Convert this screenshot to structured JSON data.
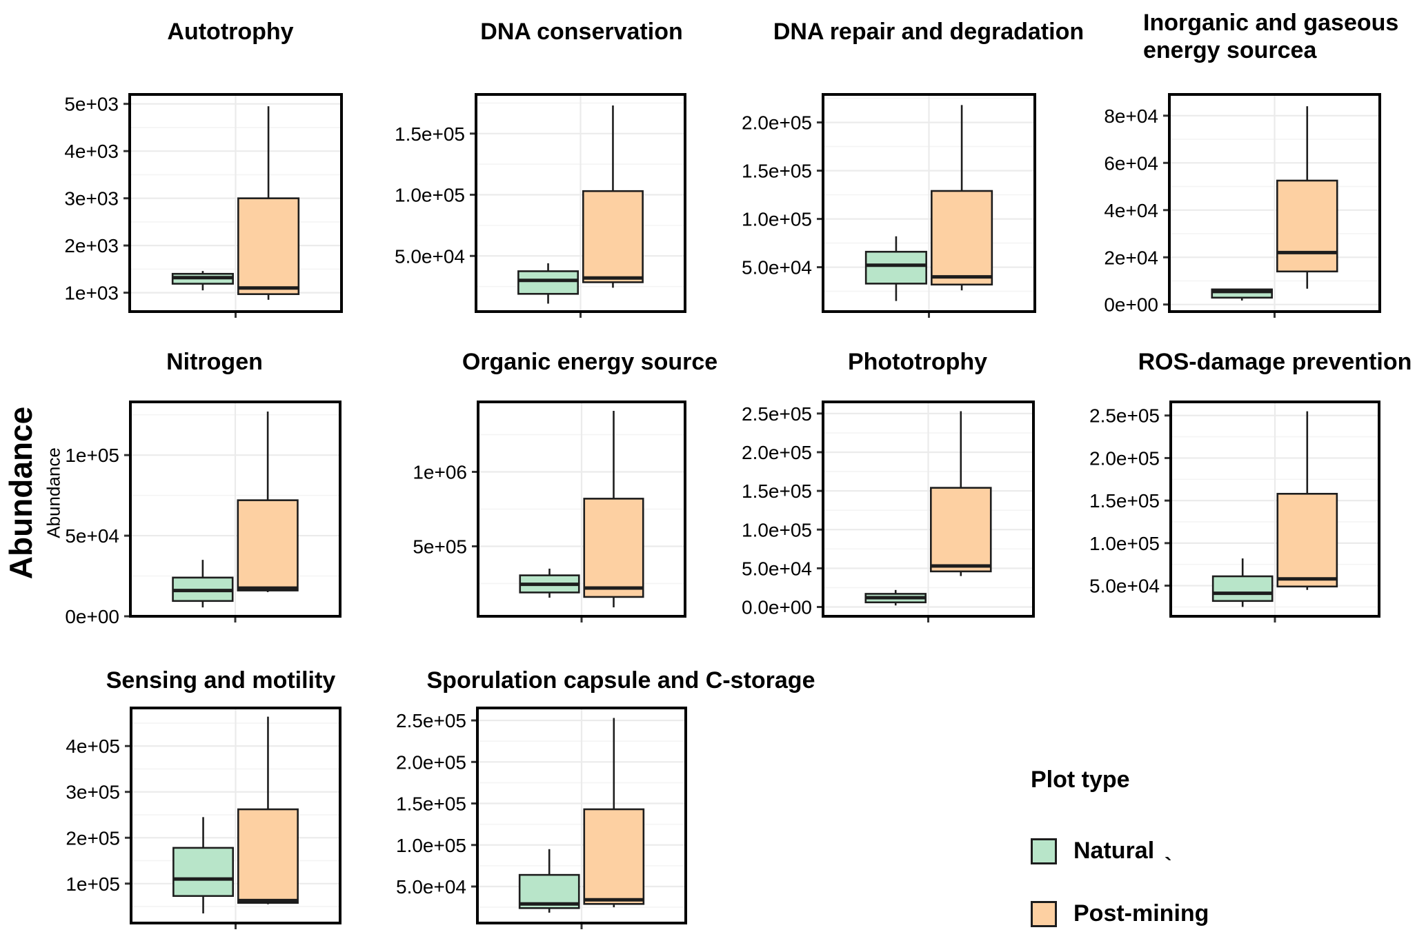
{
  "figure": {
    "outer_ylabel": "Abundance",
    "inner_ylabel": "Abundance"
  },
  "legend": {
    "title": "Plot type",
    "items": [
      {
        "label": "Natural",
        "color": "#b8e5c9"
      },
      {
        "label": "Post-mining",
        "color": "#fdd0a2"
      }
    ],
    "artifact": "`"
  },
  "colors": {
    "natural_fill": "#b8e5c9",
    "postmining_fill": "#fdd0a2",
    "box_stroke": "#1d1d1d",
    "grid_major": "#ebebeb",
    "grid_minor": "#f4f4f4",
    "panel_border": "#000000",
    "panel_bg": "#ffffff"
  },
  "chart_data": [
    {
      "type": "box",
      "title": "Autotrophy",
      "ylim": [
        600,
        5200
      ],
      "yticks": [
        {
          "v": 1000,
          "label": "1e+03"
        },
        {
          "v": 2000,
          "label": "2e+03"
        },
        {
          "v": 3000,
          "label": "3e+03"
        },
        {
          "v": 4000,
          "label": "4e+03"
        },
        {
          "v": 5000,
          "label": "5e+03"
        }
      ],
      "series": [
        {
          "name": "Natural",
          "min": 1050,
          "q1": 1190,
          "median": 1320,
          "q3": 1400,
          "max": 1460
        },
        {
          "name": "Post-mining",
          "min": 850,
          "q1": 970,
          "median": 1100,
          "q3": 3000,
          "max": 4950
        }
      ]
    },
    {
      "type": "box",
      "title": "DNA conservation",
      "ylim": [
        4500,
        182000
      ],
      "yticks": [
        {
          "v": 50000,
          "label": "5.0e+04"
        },
        {
          "v": 100000,
          "label": "1.0e+05"
        },
        {
          "v": 150000,
          "label": "1.5e+05"
        }
      ],
      "series": [
        {
          "name": "Natural",
          "min": 11000,
          "q1": 19000,
          "median": 30000,
          "q3": 37500,
          "max": 44000
        },
        {
          "name": "Post-mining",
          "min": 24000,
          "q1": 28500,
          "median": 32000,
          "q3": 103000,
          "max": 173000
        }
      ]
    },
    {
      "type": "box",
      "title": "DNA repair and degradation",
      "ylim": [
        4000,
        229000
      ],
      "yticks": [
        {
          "v": 50000,
          "label": "5.0e+04"
        },
        {
          "v": 100000,
          "label": "1.0e+05"
        },
        {
          "v": 150000,
          "label": "1.5e+05"
        },
        {
          "v": 200000,
          "label": "2.0e+05"
        }
      ],
      "series": [
        {
          "name": "Natural",
          "min": 15000,
          "q1": 33000,
          "median": 52000,
          "q3": 66000,
          "max": 82000
        },
        {
          "name": "Post-mining",
          "min": 26000,
          "q1": 32000,
          "median": 40000,
          "q3": 129000,
          "max": 218000
        }
      ]
    },
    {
      "type": "box",
      "title": "Inorganic and gaseous energy sourcea",
      "title_lines": [
        "Inorganic and gaseous",
        "energy sourcea"
      ],
      "ylim": [
        -3000,
        89000
      ],
      "yticks": [
        {
          "v": 0,
          "label": "0e+00"
        },
        {
          "v": 20000,
          "label": "2e+04"
        },
        {
          "v": 40000,
          "label": "4e+04"
        },
        {
          "v": 60000,
          "label": "6e+04"
        },
        {
          "v": 80000,
          "label": "8e+04"
        }
      ],
      "series": [
        {
          "name": "Natural",
          "min": 1700,
          "q1": 2900,
          "median": 5500,
          "q3": 6400,
          "max": 6600
        },
        {
          "name": "Post-mining",
          "min": 6700,
          "q1": 14000,
          "median": 22000,
          "q3": 52500,
          "max": 84000
        }
      ]
    },
    {
      "type": "box",
      "title": "Nitrogen",
      "ylim": [
        0,
        133000
      ],
      "yticks": [
        {
          "v": 0,
          "label": "0e+00"
        },
        {
          "v": 50000,
          "label": "5e+04"
        },
        {
          "v": 100000,
          "label": "1e+05"
        }
      ],
      "series": [
        {
          "name": "Natural",
          "min": 5500,
          "q1": 9500,
          "median": 16000,
          "q3": 24000,
          "max": 35000
        },
        {
          "name": "Post-mining",
          "min": 15000,
          "q1": 16000,
          "median": 17500,
          "q3": 72000,
          "max": 127000
        }
      ]
    },
    {
      "type": "box",
      "title": "Organic energy source",
      "ylim": [
        30000,
        1470000
      ],
      "yticks": [
        {
          "v": 500000,
          "label": "5e+05"
        },
        {
          "v": 1000000,
          "label": "1e+06"
        }
      ],
      "series": [
        {
          "name": "Natural",
          "min": 155000,
          "q1": 190000,
          "median": 245000,
          "q3": 305000,
          "max": 350000
        },
        {
          "name": "Post-mining",
          "min": 90000,
          "q1": 160000,
          "median": 220000,
          "q3": 820000,
          "max": 1410000
        }
      ]
    },
    {
      "type": "box",
      "title": "Phototrophy",
      "ylim": [
        -12000,
        265000
      ],
      "yticks": [
        {
          "v": 0,
          "label": "0.0e+00"
        },
        {
          "v": 50000,
          "label": "5.0e+04"
        },
        {
          "v": 100000,
          "label": "1.0e+05"
        },
        {
          "v": 150000,
          "label": "1.5e+05"
        },
        {
          "v": 200000,
          "label": "2.0e+05"
        },
        {
          "v": 250000,
          "label": "2.5e+05"
        }
      ],
      "series": [
        {
          "name": "Natural",
          "min": 2000,
          "q1": 6000,
          "median": 12000,
          "q3": 17000,
          "max": 22000
        },
        {
          "name": "Post-mining",
          "min": 40000,
          "q1": 46000,
          "median": 53000,
          "q3": 154000,
          "max": 253000
        }
      ]
    },
    {
      "type": "box",
      "title": "ROS-damage prevention",
      "ylim": [
        14000,
        266000
      ],
      "yticks": [
        {
          "v": 50000,
          "label": "5.0e+04"
        },
        {
          "v": 100000,
          "label": "1.0e+05"
        },
        {
          "v": 150000,
          "label": "1.5e+05"
        },
        {
          "v": 200000,
          "label": "2.0e+05"
        },
        {
          "v": 250000,
          "label": "2.5e+05"
        }
      ],
      "series": [
        {
          "name": "Natural",
          "min": 25000,
          "q1": 32000,
          "median": 41000,
          "q3": 61000,
          "max": 82000
        },
        {
          "name": "Post-mining",
          "min": 45000,
          "q1": 49000,
          "median": 58000,
          "q3": 158000,
          "max": 255000
        }
      ]
    },
    {
      "type": "box",
      "title": "Sensing and motility",
      "ylim": [
        14000,
        483000
      ],
      "yticks": [
        {
          "v": 100000,
          "label": "1e+05"
        },
        {
          "v": 200000,
          "label": "2e+05"
        },
        {
          "v": 300000,
          "label": "3e+05"
        },
        {
          "v": 400000,
          "label": "4e+05"
        }
      ],
      "series": [
        {
          "name": "Natural",
          "min": 35000,
          "q1": 73000,
          "median": 110000,
          "q3": 178000,
          "max": 245000
        },
        {
          "name": "Post-mining",
          "min": 55000,
          "q1": 58000,
          "median": 63000,
          "q3": 262000,
          "max": 464000
        }
      ]
    },
    {
      "type": "box",
      "title": "Sporulation capsule and C-storage",
      "ylim": [
        6000,
        265000
      ],
      "yticks": [
        {
          "v": 50000,
          "label": "5.0e+04"
        },
        {
          "v": 100000,
          "label": "1.0e+05"
        },
        {
          "v": 150000,
          "label": "1.5e+05"
        },
        {
          "v": 200000,
          "label": "2.0e+05"
        },
        {
          "v": 250000,
          "label": "2.5e+05"
        }
      ],
      "series": [
        {
          "name": "Natural",
          "min": 18500,
          "q1": 24000,
          "median": 29000,
          "q3": 64000,
          "max": 95000
        },
        {
          "name": "Post-mining",
          "min": 25000,
          "q1": 29000,
          "median": 34000,
          "q3": 143000,
          "max": 253000
        }
      ]
    }
  ]
}
